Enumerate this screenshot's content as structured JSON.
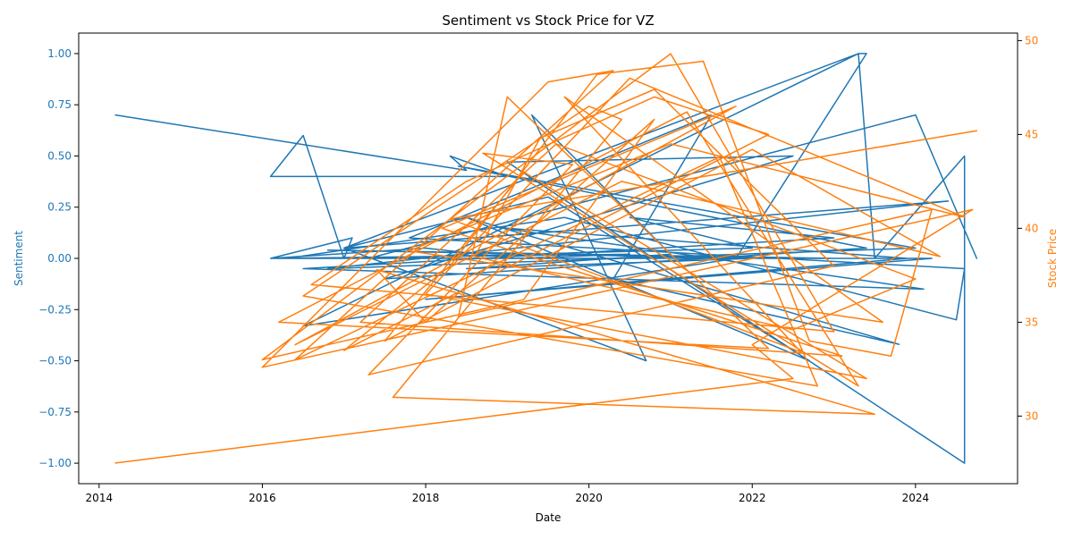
{
  "chart_data": {
    "type": "line",
    "title": "Sentiment vs Stock Price for VZ",
    "xlabel": "Date",
    "xlim": [
      2013.75,
      2025.25
    ],
    "xticks": [
      2014,
      2016,
      2018,
      2020,
      2022,
      2024
    ],
    "xtick_labels": [
      "2014",
      "2016",
      "2018",
      "2020",
      "2022",
      "2024"
    ],
    "y_left": {
      "label": "Sentiment",
      "ylim": [
        -1.1,
        1.1
      ],
      "ticks": [
        -1.0,
        -0.75,
        -0.5,
        -0.25,
        0.0,
        0.25,
        0.5,
        0.75,
        1.0
      ],
      "tick_labels": [
        "−1.00",
        "−0.75",
        "−0.50",
        "−0.25",
        "0.00",
        "0.25",
        "0.50",
        "0.75",
        "1.00"
      ],
      "color": "#1f77b4"
    },
    "y_right": {
      "label": "Stock Price",
      "ylim": [
        26.4,
        50.4
      ],
      "ticks": [
        30,
        35,
        40,
        45,
        50
      ],
      "tick_labels": [
        "30",
        "35",
        "40",
        "45",
        "50"
      ],
      "color": "#ff7f0e"
    },
    "grid": false,
    "series": [
      {
        "axis": "left",
        "color": "#1f77b4",
        "x": [
          2014.2,
          2018.5,
          2018.3,
          2019.0,
          2016.1,
          2016.5,
          2017.0,
          2017.1,
          2016.1,
          2018.0,
          2019.1,
          2020.5,
          2016.1,
          2023.0,
          2016.8,
          2022.0,
          2018.5,
          2021.0,
          2019.3,
          2020.7,
          2017.0,
          2023.3,
          2023.4,
          2021.8,
          2016.5,
          2023.3,
          2023.5,
          2024.6,
          2024.6,
          2019.0,
          2022.5,
          2017.5,
          2023.4,
          2018.4,
          2024.0,
          2016.8,
          2024.4,
          2017.0,
          2019.5,
          2022.7,
          2018.5,
          2023.8,
          2020.3,
          2021.5,
          2017.8,
          2024.6,
          2024.5,
          2019.7,
          2016.3,
          2024.2,
          2018.0,
          2023.9,
          2018.9,
          2024.1,
          2016.5,
          2023.0,
          2020.5,
          2022.0,
          2017.3,
          2024.0,
          2024.75
        ],
        "y": [
          0.7,
          0.43,
          0.5,
          0.4,
          0.4,
          0.6,
          0.0,
          0.1,
          0.0,
          0.05,
          0.0,
          0.02,
          0.0,
          0.0,
          0.04,
          0.0,
          -0.05,
          0.02,
          0.7,
          -0.5,
          0.05,
          1.0,
          1.0,
          0.0,
          -0.33,
          1.0,
          0.0,
          0.5,
          -1.0,
          0.47,
          0.5,
          -0.1,
          0.05,
          0.45,
          0.05,
          -0.05,
          0.28,
          0.05,
          0.3,
          -0.5,
          0.2,
          -0.42,
          -0.1,
          0.7,
          0.1,
          -0.05,
          -0.3,
          0.2,
          0.0,
          0.0,
          -0.2,
          0.0,
          0.15,
          -0.15,
          -0.05,
          0.1,
          0.2,
          0.05,
          0.0,
          0.7,
          0.0
        ]
      },
      {
        "axis": "right",
        "color": "#ff7f0e",
        "x": [
          2014.2,
          2022.5,
          2022.0,
          2024.7,
          2016.0,
          2019.5,
          2020.3,
          2016.4,
          2021.6,
          2022.8,
          2016.5,
          2020.0,
          2020.4,
          2017.6,
          2023.5,
          2017.4,
          2018.0,
          2020.8,
          2019.2,
          2016.0,
          2021.0,
          2023.0,
          2016.6,
          2018.5,
          2020.8,
          2022.2,
          2017.0,
          2018.3,
          2020.1,
          2021.4,
          2022.7,
          2023.7,
          2024.2,
          2018.4,
          2019.0,
          2022.2,
          2016.2,
          2021.2,
          2023.3,
          2018.7,
          2019.8,
          2017.3,
          2023.0,
          2020.8,
          2019.4,
          2018.6,
          2022.5,
          2024.0,
          2019.6,
          2017.2,
          2023.1,
          2018.2,
          2021.8,
          2016.4,
          2020.4,
          2024.3,
          2022.0,
          2017.5,
          2019.2,
          2023.4,
          2018.0,
          2020.5,
          2024.6,
          2021.0,
          2017.8,
          2023.6,
          2019.7,
          2022.6,
          2018.3,
          2024.75
        ],
        "y": [
          27.5,
          32.0,
          33.8,
          41.0,
          32.6,
          47.8,
          48.4,
          33.0,
          43.8,
          31.6,
          36.4,
          46.5,
          45.8,
          31.0,
          30.1,
          37.8,
          35.0,
          45.8,
          36.2,
          33.0,
          49.3,
          34.5,
          37.0,
          42.5,
          47.0,
          45.0,
          33.5,
          38.0,
          48.2,
          48.9,
          34.0,
          33.2,
          41.0,
          35.3,
          47.0,
          33.6,
          35.0,
          46.2,
          31.6,
          44.0,
          43.4,
          32.2,
          38.0,
          47.4,
          44.8,
          38.5,
          34.6,
          37.3,
          44.5,
          35.0,
          33.2,
          40.0,
          46.5,
          33.8,
          42.5,
          38.5,
          44.2,
          34.0,
          43.0,
          32.0,
          36.5,
          48.0,
          40.6,
          44.5,
          38.8,
          35.0,
          47.0,
          33.4,
          40.5,
          45.2
        ]
      }
    ]
  }
}
